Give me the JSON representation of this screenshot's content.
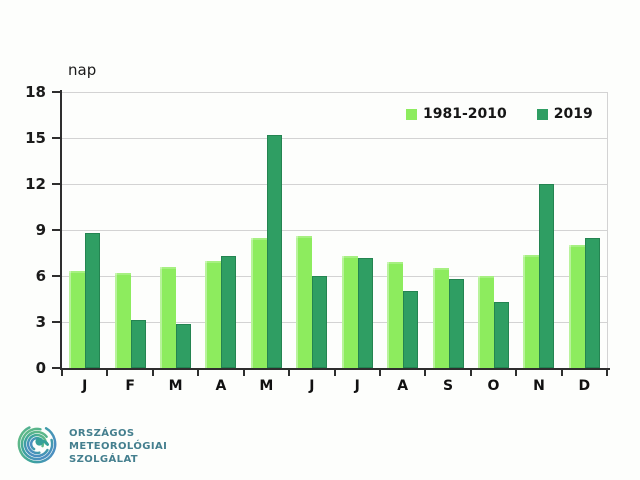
{
  "page": {
    "background": "#fdfefc"
  },
  "chart_data": {
    "type": "bar",
    "title": "",
    "ylabel": "nap",
    "xlabel": "",
    "categories": [
      "J",
      "F",
      "M",
      "A",
      "M",
      "J",
      "J",
      "A",
      "S",
      "O",
      "N",
      "D"
    ],
    "series": [
      {
        "name": "1981-2010",
        "color": "#8dec5e",
        "values": [
          6.3,
          6.2,
          6.6,
          7.0,
          8.5,
          8.6,
          7.3,
          6.9,
          6.5,
          6.0,
          7.4,
          8.0
        ]
      },
      {
        "name": "2019",
        "color": "#2f9e63",
        "values": [
          8.8,
          3.1,
          2.9,
          7.3,
          15.2,
          6.0,
          7.2,
          5.0,
          5.8,
          4.3,
          12.0,
          8.5
        ]
      }
    ],
    "ylim": [
      0,
      18
    ],
    "yticks": [
      0,
      3,
      6,
      9,
      12,
      15,
      18
    ],
    "grid": true,
    "legend_position": "top-right",
    "axis_color": "#2e2e2e",
    "gridline_color": "#d3d3d3"
  },
  "logo": {
    "line1": "ORSZÁGOS",
    "line2": "METEOROLÓGIAI",
    "line3": "SZOLGÁLAT",
    "text_color": "#447f8e",
    "swirl_colors": [
      "#63bb86",
      "#3aa39c",
      "#4b8fc0"
    ]
  }
}
